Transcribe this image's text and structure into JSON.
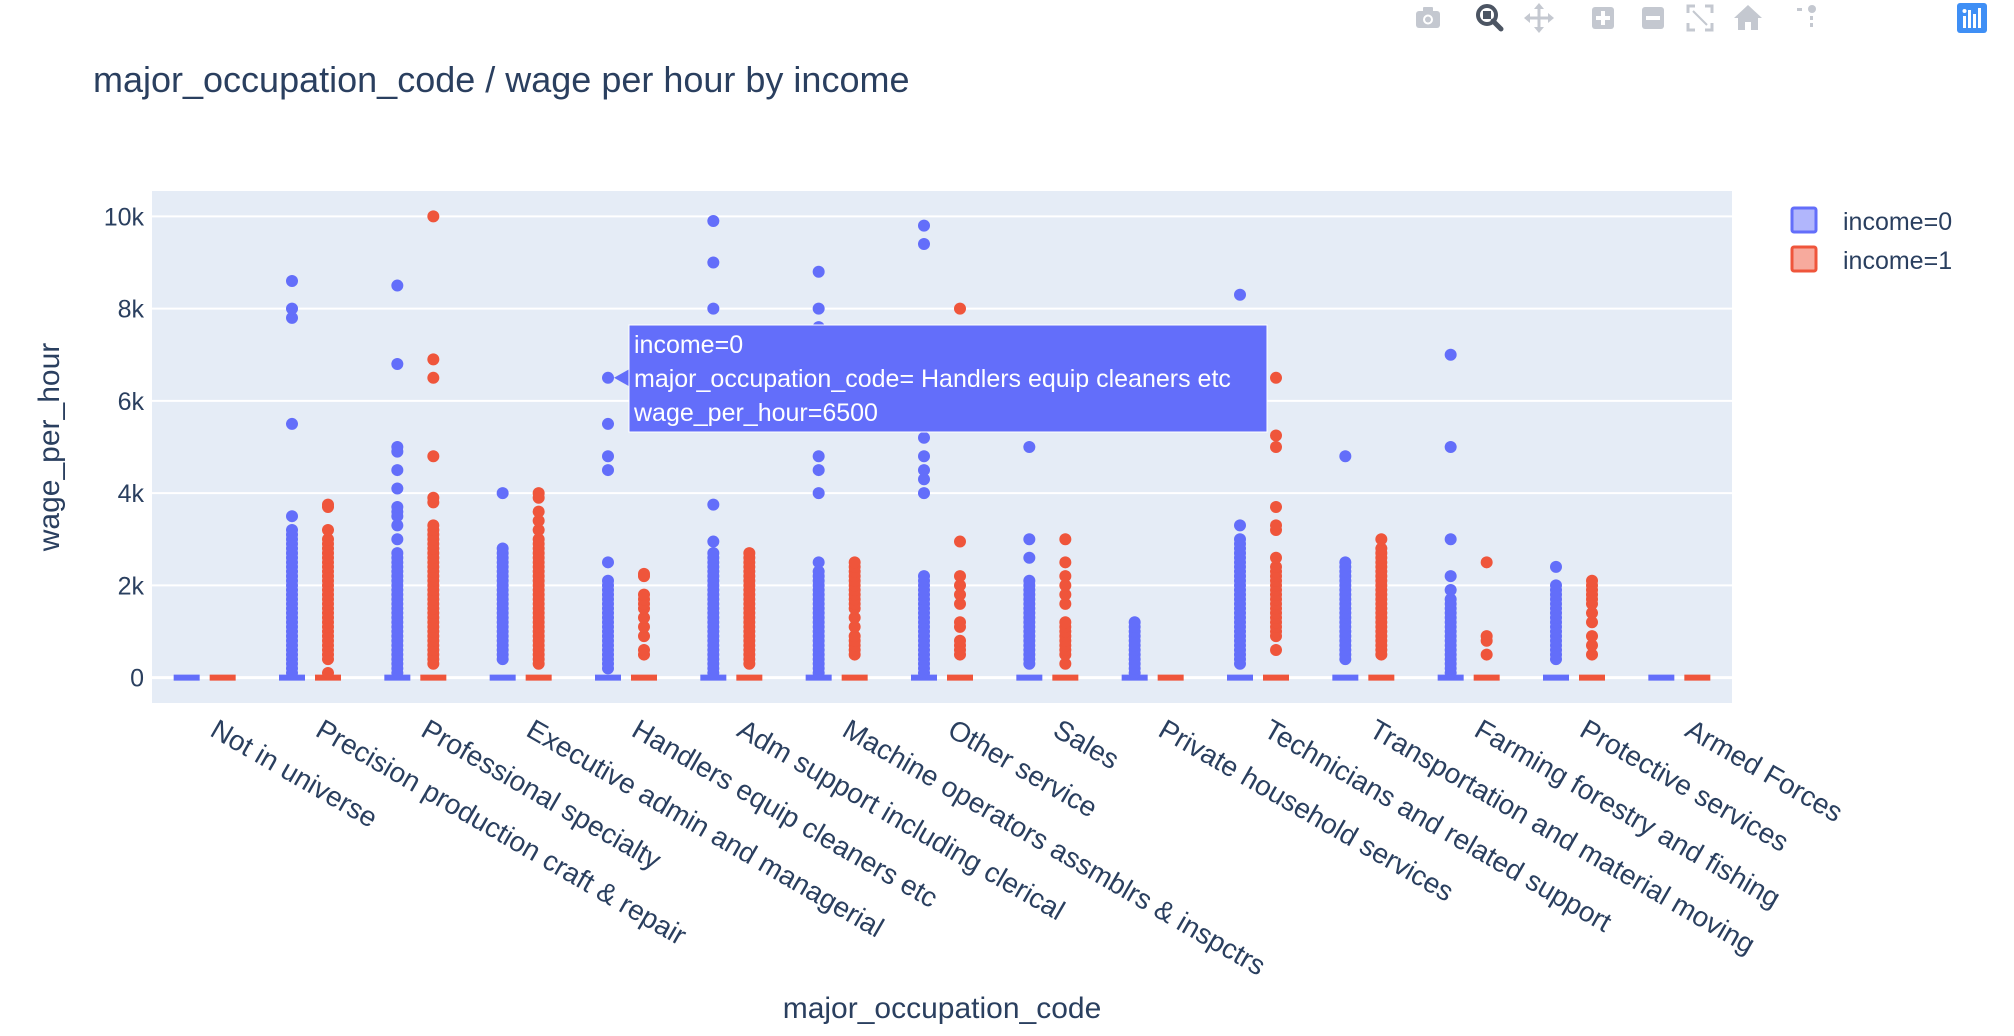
{
  "toolbar": {
    "buttons": [
      {
        "name": "camera-icon",
        "icon": "camera",
        "active": false
      },
      {
        "name": "zoom-icon",
        "icon": "zoom",
        "active": true
      },
      {
        "name": "pan-icon",
        "icon": "pan",
        "active": false
      },
      {
        "name": "zoom-in-icon",
        "icon": "zoom-in",
        "active": false
      },
      {
        "name": "zoom-out-icon",
        "icon": "zoom-out",
        "active": false
      },
      {
        "name": "autoscale-icon",
        "icon": "autoscale",
        "active": false
      },
      {
        "name": "home-icon",
        "icon": "home",
        "active": false
      },
      {
        "name": "spike-lines-icon",
        "icon": "spikelines",
        "active": false
      },
      {
        "name": "hover-closest-icon",
        "icon": "hover-closest",
        "active": false
      },
      {
        "name": "hover-compare-icon",
        "icon": "hover-compare",
        "active": false
      },
      {
        "name": "plotly-logo-icon",
        "icon": "plotly-logo",
        "active": false
      }
    ],
    "icon_color": "#c4c8d0",
    "active_color": "#4c5563",
    "logo_color": "#3f8ff5"
  },
  "chart_data": {
    "type": "scatter",
    "title": "major_occupation_code / wage per hour by income",
    "xlabel": "major_occupation_code",
    "ylabel": "wage_per_hour",
    "ylim": [
      -550,
      10550
    ],
    "y_ticks": [
      {
        "value": 0,
        "label": "0"
      },
      {
        "value": 2000,
        "label": "2k"
      },
      {
        "value": 4000,
        "label": "4k"
      },
      {
        "value": 6000,
        "label": "6k"
      },
      {
        "value": 8000,
        "label": "8k"
      },
      {
        "value": 10000,
        "label": "10k"
      }
    ],
    "grid": true,
    "legend_position": "top-right",
    "plot_background": "#e5ecf6",
    "categories": [
      "Not in universe",
      "Precision production craft & repair",
      "Professional specialty",
      "Executive admin and managerial",
      "Handlers equip cleaners etc",
      "Adm support including clerical",
      "Machine operators assmblrs & inspctrs",
      "Other service",
      "Sales",
      "Private household services",
      "Technicians and related support",
      "Transportation and material moving",
      "Farming forestry and fishing",
      "Protective services",
      "Armed Forces"
    ],
    "series": [
      {
        "name": "income=0",
        "color": "#636efa",
        "points": [
          [
            0
          ],
          [
            0,
            100,
            200,
            300,
            400,
            500,
            600,
            700,
            800,
            900,
            1000,
            1100,
            1200,
            1300,
            1400,
            1500,
            1600,
            1700,
            1800,
            1900,
            2000,
            2100,
            2200,
            2300,
            2400,
            2500,
            2600,
            2700,
            2800,
            2900,
            3000,
            3100,
            3200,
            3500,
            5500,
            7800,
            8000,
            8600
          ],
          [
            0,
            100,
            200,
            300,
            400,
            500,
            600,
            700,
            800,
            900,
            1000,
            1100,
            1200,
            1300,
            1400,
            1500,
            1600,
            1700,
            1800,
            1900,
            2000,
            2100,
            2200,
            2300,
            2400,
            2500,
            2600,
            2700,
            3000,
            3300,
            3500,
            3600,
            3700,
            4100,
            4500,
            4900,
            5000,
            6800,
            8500
          ],
          [
            0,
            400,
            500,
            600,
            700,
            800,
            900,
            1000,
            1100,
            1200,
            1300,
            1400,
            1500,
            1600,
            1700,
            1800,
            1900,
            2000,
            2100,
            2200,
            2300,
            2400,
            2500,
            2600,
            2700,
            2800,
            4000
          ],
          [
            0,
            200,
            300,
            400,
            500,
            600,
            700,
            800,
            900,
            1000,
            1100,
            1200,
            1300,
            1400,
            1500,
            1600,
            1700,
            1800,
            1900,
            2000,
            2100,
            2500,
            4500,
            4800,
            5500,
            6500
          ],
          [
            0,
            100,
            200,
            300,
            400,
            500,
            600,
            700,
            800,
            900,
            1000,
            1100,
            1200,
            1300,
            1400,
            1500,
            1600,
            1700,
            1800,
            1900,
            2000,
            2100,
            2200,
            2300,
            2400,
            2500,
            2600,
            2700,
            2950,
            3750,
            8000,
            9000,
            9900
          ],
          [
            0,
            100,
            200,
            300,
            400,
            500,
            600,
            700,
            800,
            900,
            1000,
            1100,
            1200,
            1300,
            1400,
            1500,
            1600,
            1700,
            1800,
            1900,
            2000,
            2100,
            2200,
            2300,
            2500,
            4000,
            4500,
            4800,
            7600,
            8000,
            8800
          ],
          [
            0,
            100,
            200,
            300,
            400,
            500,
            600,
            700,
            800,
            900,
            1000,
            1100,
            1200,
            1300,
            1400,
            1500,
            1600,
            1700,
            1800,
            1900,
            2000,
            2100,
            2200,
            4000,
            4300,
            4500,
            4800,
            5200,
            9400,
            9800
          ],
          [
            0,
            300,
            400,
            500,
            600,
            700,
            800,
            900,
            1000,
            1100,
            1200,
            1300,
            1400,
            1500,
            1600,
            1700,
            1800,
            1900,
            2000,
            2100,
            2600,
            3000,
            5000
          ],
          [
            0,
            100,
            200,
            300,
            400,
            500,
            600,
            700,
            800,
            900,
            1000,
            1100,
            1200
          ],
          [
            0,
            300,
            400,
            500,
            600,
            700,
            800,
            900,
            1000,
            1100,
            1200,
            1300,
            1400,
            1500,
            1600,
            1700,
            1800,
            1900,
            2000,
            2100,
            2200,
            2300,
            2400,
            2500,
            2600,
            2700,
            2800,
            2900,
            3000,
            3300,
            8300
          ],
          [
            0,
            400,
            500,
            600,
            700,
            800,
            900,
            1000,
            1100,
            1200,
            1300,
            1400,
            1500,
            1600,
            1700,
            1800,
            1900,
            2000,
            2100,
            2200,
            2300,
            2400,
            2500,
            4800
          ],
          [
            0,
            100,
            200,
            300,
            400,
            500,
            600,
            700,
            800,
            900,
            1000,
            1100,
            1200,
            1300,
            1400,
            1500,
            1600,
            1700,
            1900,
            2200,
            3000,
            5000,
            7000
          ],
          [
            0,
            400,
            500,
            600,
            700,
            800,
            900,
            1000,
            1100,
            1200,
            1300,
            1400,
            1500,
            1600,
            1700,
            1800,
            1900,
            2000,
            2400
          ],
          [
            0
          ]
        ]
      },
      {
        "name": "income=1",
        "color": "#ef553b",
        "points": [
          [
            0
          ],
          [
            0,
            100,
            400,
            500,
            600,
            700,
            800,
            900,
            1000,
            1100,
            1200,
            1300,
            1400,
            1500,
            1600,
            1700,
            1800,
            1900,
            2000,
            2100,
            2200,
            2300,
            2400,
            2500,
            2600,
            2700,
            2800,
            2900,
            3000,
            3200,
            3700,
            3750
          ],
          [
            0,
            300,
            400,
            500,
            600,
            700,
            800,
            900,
            1000,
            1100,
            1200,
            1300,
            1400,
            1500,
            1600,
            1700,
            1800,
            1900,
            2000,
            2100,
            2200,
            2300,
            2400,
            2500,
            2600,
            2700,
            2800,
            2900,
            3000,
            3100,
            3200,
            3300,
            3800,
            3900,
            4800,
            6500,
            6900,
            10000
          ],
          [
            0,
            300,
            400,
            500,
            600,
            700,
            800,
            900,
            1000,
            1100,
            1200,
            1300,
            1400,
            1500,
            1600,
            1700,
            1800,
            1900,
            2000,
            2100,
            2200,
            2300,
            2400,
            2500,
            2600,
            2700,
            2800,
            2900,
            3000,
            3200,
            3400,
            3600,
            3900,
            4000
          ],
          [
            0,
            500,
            600,
            900,
            1100,
            1300,
            1500,
            1600,
            1700,
            1800,
            2200,
            2250
          ],
          [
            0,
            300,
            400,
            500,
            600,
            700,
            800,
            900,
            1000,
            1100,
            1200,
            1300,
            1400,
            1500,
            1600,
            1700,
            1800,
            1900,
            2000,
            2100,
            2200,
            2300,
            2400,
            2500,
            2600,
            2700
          ],
          [
            0,
            500,
            600,
            700,
            800,
            900,
            1100,
            1300,
            1500,
            1600,
            1700,
            1800,
            1900,
            2000,
            2100,
            2200,
            2300,
            2400,
            2500
          ],
          [
            0,
            500,
            600,
            700,
            800,
            1100,
            1200,
            1600,
            1800,
            2000,
            2200,
            2950,
            8000
          ],
          [
            0,
            300,
            500,
            600,
            700,
            800,
            900,
            1000,
            1100,
            1200,
            1600,
            1800,
            2000,
            2200,
            2500,
            3000
          ],
          [
            0
          ],
          [
            0,
            600,
            900,
            1000,
            1100,
            1200,
            1300,
            1400,
            1500,
            1600,
            1700,
            1800,
            1900,
            2000,
            2100,
            2200,
            2300,
            2400,
            2600,
            3200,
            3300,
            3700,
            5000,
            5250,
            6500
          ],
          [
            0,
            500,
            600,
            700,
            800,
            900,
            1000,
            1100,
            1200,
            1300,
            1400,
            1500,
            1600,
            1700,
            1800,
            1900,
            2000,
            2100,
            2200,
            2300,
            2400,
            2500,
            2600,
            2700,
            2800,
            3000
          ],
          [
            0,
            500,
            800,
            900,
            2500
          ],
          [
            0,
            500,
            700,
            900,
            1200,
            1400,
            1600,
            1700,
            1800,
            1900,
            2000,
            2100
          ],
          [
            0
          ]
        ]
      }
    ],
    "hover": {
      "series_index": 0,
      "category_index": 4,
      "value": 6500,
      "lines": [
        "income=0",
        "major_occupation_code= Handlers equip cleaners etc",
        "wage_per_hour=6500"
      ]
    }
  }
}
